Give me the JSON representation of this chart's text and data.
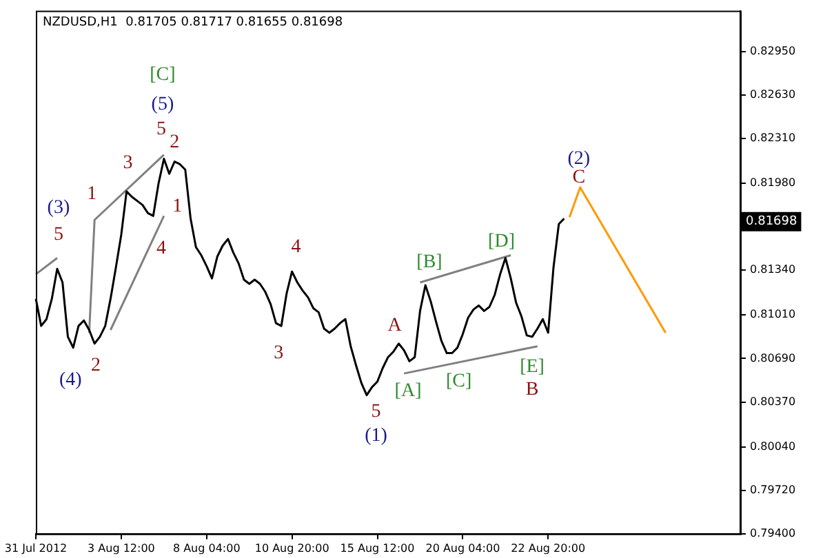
{
  "chart_data": {
    "type": "line",
    "title": "NZDUSD,H1  0.81705 0.81717 0.81655 0.81698",
    "categories": [
      "31 Jul 2012",
      null,
      null,
      null,
      null,
      null,
      null,
      null,
      null,
      null,
      null,
      null,
      null,
      null,
      null,
      null,
      "3 Aug 12:00",
      null,
      null,
      null,
      null,
      null,
      null,
      null,
      null,
      null,
      null,
      null,
      null,
      null,
      null,
      null,
      "8 Aug 04:00",
      null,
      null,
      null,
      null,
      null,
      null,
      null,
      null,
      null,
      null,
      null,
      null,
      null,
      null,
      null,
      "10 Aug 20:00",
      null,
      null,
      null,
      null,
      null,
      null,
      null,
      null,
      null,
      null,
      null,
      null,
      null,
      null,
      null,
      "15 Aug 12:00",
      null,
      null,
      null,
      null,
      null,
      null,
      null,
      null,
      null,
      null,
      null,
      null,
      null,
      null,
      null,
      "20 Aug 04:00",
      null,
      null,
      null,
      null,
      null,
      null,
      null,
      null,
      null,
      null,
      null,
      null,
      null,
      null,
      null,
      "22 Aug 20:00",
      null,
      null,
      null,
      null,
      null,
      null,
      null,
      null,
      null,
      null,
      null,
      null,
      null,
      null,
      null,
      null,
      null,
      null,
      null,
      null,
      null,
      null,
      null,
      null,
      null,
      null,
      null,
      null,
      null,
      null,
      null,
      null,
      null,
      null,
      null,
      null
    ],
    "ylim": [
      0.794,
      0.8325
    ],
    "yticks": [
      {
        "value": 0.794,
        "label": "0.79400"
      },
      {
        "value": 0.7972,
        "label": "0.79720"
      },
      {
        "value": 0.8004,
        "label": "0.80040"
      },
      {
        "value": 0.8037,
        "label": "0.80370"
      },
      {
        "value": 0.8069,
        "label": "0.80690"
      },
      {
        "value": 0.8101,
        "label": "0.81010"
      },
      {
        "value": 0.8134,
        "label": "0.81340"
      },
      {
        "value": 0.8198,
        "label": "0.81980"
      },
      {
        "value": 0.8231,
        "label": "0.82310"
      },
      {
        "value": 0.8263,
        "label": "0.82630"
      },
      {
        "value": 0.8295,
        "label": "0.82950"
      }
    ],
    "grid": false,
    "legend": false,
    "marker": "none",
    "line_style": "solid",
    "series": [
      {
        "color": "#000000",
        "values": [
          0.8113,
          0.8093,
          0.8098,
          0.8113,
          0.8135,
          0.8125,
          0.8085,
          0.8077,
          0.8093,
          0.8097,
          0.809,
          0.808,
          0.8085,
          0.8093,
          0.8113,
          0.8136,
          0.816,
          0.8192,
          0.8188,
          0.8185,
          0.8182,
          0.8176,
          0.8174,
          0.8198,
          0.8216,
          0.8205,
          0.8214,
          0.8212,
          0.8208,
          0.8172,
          0.8151,
          0.8145,
          0.8137,
          0.8128,
          0.8144,
          0.8152,
          0.8157,
          0.8147,
          0.8139,
          0.8127,
          0.8124,
          0.8127,
          0.8124,
          0.8118,
          0.8109,
          0.8095,
          0.8093,
          0.8117,
          0.8133,
          0.8125,
          0.8119,
          0.8114,
          0.8106,
          0.8103,
          0.8091,
          0.8088,
          0.8091,
          0.8095,
          0.8098,
          0.8078,
          0.8064,
          0.8051,
          0.8042,
          0.8048,
          0.8052,
          0.8062,
          0.807,
          0.8074,
          0.808,
          0.8075,
          0.8067,
          0.807,
          0.8104,
          0.8123,
          0.8111,
          0.8096,
          0.8082,
          0.8073,
          0.8073,
          0.8077,
          0.8087,
          0.8099,
          0.8105,
          0.8108,
          0.8104,
          0.8107,
          0.8116,
          0.8131,
          0.8143,
          0.8128,
          0.811,
          0.81,
          0.8086,
          0.8085,
          0.8091,
          0.8098,
          0.8088,
          0.8136,
          0.8168,
          0.8172,
          null,
          null,
          null,
          null,
          null,
          null,
          null,
          null,
          null,
          null,
          null,
          null,
          null,
          null,
          null,
          null,
          null,
          null,
          null,
          null,
          null,
          null,
          null,
          null,
          null,
          null,
          null,
          null,
          null,
          null,
          null,
          null,
          null
        ]
      },
      {
        "color": "#808080",
        "values": [
          0.8131,
          null,
          null,
          null,
          0.8143,
          null,
          null,
          null,
          null,
          null,
          null,
          null,
          null,
          null,
          null,
          null,
          null,
          null,
          null,
          null,
          null,
          null,
          null,
          null,
          null,
          null,
          null,
          null,
          null,
          null,
          null,
          null,
          null,
          null,
          null,
          null,
          null,
          null,
          null,
          null,
          null,
          null,
          null,
          null,
          null,
          null,
          null,
          null,
          null,
          null,
          null,
          null,
          null,
          null,
          null,
          null,
          null,
          null,
          null,
          null,
          null,
          null,
          null,
          null,
          null,
          null,
          null,
          null,
          null,
          null,
          null,
          null,
          null,
          null,
          null,
          null,
          null,
          null,
          null,
          null,
          null,
          null,
          null,
          null,
          null,
          null,
          null,
          null,
          null,
          null,
          null,
          null,
          null,
          null,
          null,
          null,
          null,
          null,
          null,
          null,
          null,
          null,
          null,
          null,
          null,
          null,
          null,
          null,
          null,
          null,
          null,
          null,
          null,
          null,
          null,
          null,
          null,
          null,
          null,
          null,
          null,
          null,
          null,
          null,
          null,
          null,
          null,
          null,
          null,
          null,
          null,
          null,
          null
        ]
      },
      {
        "color": "#808080",
        "values": [
          null,
          null,
          null,
          null,
          null,
          null,
          null,
          null,
          null,
          null,
          0.8088,
          0.8171,
          null,
          null,
          null,
          null,
          null,
          null,
          null,
          null,
          null,
          null,
          null,
          null,
          0.8219,
          null,
          null,
          null,
          null,
          null,
          null,
          null,
          null,
          null,
          null,
          null,
          null,
          null,
          null,
          null,
          null,
          null,
          null,
          null,
          null,
          null,
          null,
          null,
          null,
          null,
          null,
          null,
          null,
          null,
          null,
          null,
          null,
          null,
          null,
          null,
          null,
          null,
          null,
          null,
          null,
          null,
          null,
          null,
          null,
          null,
          null,
          null,
          null,
          null,
          null,
          null,
          null,
          null,
          null,
          null,
          null,
          null,
          null,
          null,
          null,
          null,
          null,
          null,
          null,
          null,
          null,
          null,
          null,
          null,
          null,
          null,
          null,
          null,
          null,
          null,
          null,
          null,
          null,
          null,
          null,
          null,
          null,
          null,
          null,
          null,
          null,
          null,
          null,
          null,
          null,
          null,
          null,
          null,
          null,
          null,
          null,
          null,
          null,
          null,
          null,
          null,
          null,
          null,
          null,
          null,
          null,
          null,
          null
        ]
      },
      {
        "color": "#808080",
        "values": [
          null,
          null,
          null,
          null,
          null,
          null,
          null,
          null,
          null,
          null,
          null,
          null,
          null,
          null,
          0.809,
          null,
          null,
          null,
          null,
          null,
          null,
          null,
          null,
          null,
          0.8174,
          null,
          null,
          null,
          null,
          null,
          null,
          null,
          null,
          null,
          null,
          null,
          null,
          null,
          null,
          null,
          null,
          null,
          null,
          null,
          null,
          null,
          null,
          null,
          null,
          null,
          null,
          null,
          null,
          null,
          null,
          null,
          null,
          null,
          null,
          null,
          null,
          null,
          null,
          null,
          null,
          null,
          null,
          null,
          null,
          null,
          null,
          null,
          null,
          null,
          null,
          null,
          null,
          null,
          null,
          null,
          null,
          null,
          null,
          null,
          null,
          null,
          null,
          null,
          null,
          null,
          null,
          null,
          null,
          null,
          null,
          null,
          null,
          null,
          null,
          null,
          null,
          null,
          null,
          null,
          null,
          null,
          null,
          null,
          null,
          null,
          null,
          null,
          null,
          null,
          null,
          null,
          null,
          null,
          null,
          null,
          null,
          null,
          null,
          null,
          null,
          null,
          null,
          null,
          null,
          null,
          null,
          null,
          null
        ]
      },
      {
        "color": "#808080",
        "values": [
          null,
          null,
          null,
          null,
          null,
          null,
          null,
          null,
          null,
          null,
          null,
          null,
          null,
          null,
          null,
          null,
          null,
          null,
          null,
          null,
          null,
          null,
          null,
          null,
          null,
          null,
          null,
          null,
          null,
          null,
          null,
          null,
          null,
          null,
          null,
          null,
          null,
          null,
          null,
          null,
          null,
          null,
          null,
          null,
          null,
          null,
          null,
          null,
          null,
          null,
          null,
          null,
          null,
          null,
          null,
          null,
          null,
          null,
          null,
          null,
          null,
          null,
          null,
          null,
          null,
          null,
          null,
          null,
          null,
          null,
          null,
          null,
          0.8125,
          null,
          null,
          null,
          null,
          null,
          null,
          null,
          null,
          null,
          null,
          null,
          null,
          null,
          null,
          null,
          null,
          0.8145,
          null,
          null,
          null,
          null,
          null,
          null,
          null,
          null,
          null,
          null,
          null,
          null,
          null,
          null,
          null,
          null,
          null,
          null,
          null,
          null,
          null,
          null,
          null,
          null,
          null,
          null,
          null,
          null,
          null,
          null,
          null,
          null,
          null,
          null,
          null,
          null,
          null,
          null,
          null,
          null,
          null,
          null,
          null
        ]
      },
      {
        "color": "#808080",
        "values": [
          null,
          null,
          null,
          null,
          null,
          null,
          null,
          null,
          null,
          null,
          null,
          null,
          null,
          null,
          null,
          null,
          null,
          null,
          null,
          null,
          null,
          null,
          null,
          null,
          null,
          null,
          null,
          null,
          null,
          null,
          null,
          null,
          null,
          null,
          null,
          null,
          null,
          null,
          null,
          null,
          null,
          null,
          null,
          null,
          null,
          null,
          null,
          null,
          null,
          null,
          null,
          null,
          null,
          null,
          null,
          null,
          null,
          null,
          null,
          null,
          null,
          null,
          null,
          null,
          null,
          null,
          null,
          null,
          null,
          0.8058,
          null,
          null,
          null,
          null,
          null,
          null,
          null,
          null,
          null,
          null,
          null,
          null,
          null,
          null,
          null,
          null,
          null,
          null,
          null,
          null,
          null,
          null,
          null,
          null,
          0.8078,
          null,
          null,
          null,
          null,
          null,
          null,
          null,
          null,
          null,
          null,
          null,
          null,
          null,
          null,
          null,
          null,
          null,
          null,
          null,
          null,
          null,
          null,
          null,
          null,
          null,
          null,
          null,
          null,
          null,
          null,
          null,
          null,
          null,
          null,
          null,
          null,
          null,
          null
        ]
      },
      {
        "color": "#ff9900",
        "values": [
          null,
          null,
          null,
          null,
          null,
          null,
          null,
          null,
          null,
          null,
          null,
          null,
          null,
          null,
          null,
          null,
          null,
          null,
          null,
          null,
          null,
          null,
          null,
          null,
          null,
          null,
          null,
          null,
          null,
          null,
          null,
          null,
          null,
          null,
          null,
          null,
          null,
          null,
          null,
          null,
          null,
          null,
          null,
          null,
          null,
          null,
          null,
          null,
          null,
          null,
          null,
          null,
          null,
          null,
          null,
          null,
          null,
          null,
          null,
          null,
          null,
          null,
          null,
          null,
          null,
          null,
          null,
          null,
          null,
          null,
          null,
          null,
          null,
          null,
          null,
          null,
          null,
          null,
          null,
          null,
          null,
          null,
          null,
          null,
          null,
          null,
          null,
          null,
          null,
          null,
          null,
          null,
          null,
          null,
          null,
          null,
          null,
          null,
          null,
          null,
          0.8173,
          null,
          0.8195,
          null,
          null,
          null,
          null,
          null,
          null,
          null,
          null,
          null,
          null,
          null,
          null,
          null,
          null,
          null,
          0.8088,
          null,
          null,
          null,
          null,
          null,
          null,
          null,
          null,
          null,
          null,
          null,
          null,
          null,
          null
        ]
      }
    ],
    "annotations": [
      "[C]",
      "(5)",
      "5",
      "2",
      "3",
      "1",
      "(3)",
      "5",
      "1",
      "4",
      "(4)",
      "2",
      "3",
      "4",
      "A",
      "5",
      "(1)",
      "[A]",
      "[B]",
      "[C]",
      "[D]",
      "[E]",
      "B",
      "(2)",
      "C",
      "0.81698"
    ]
  }
}
